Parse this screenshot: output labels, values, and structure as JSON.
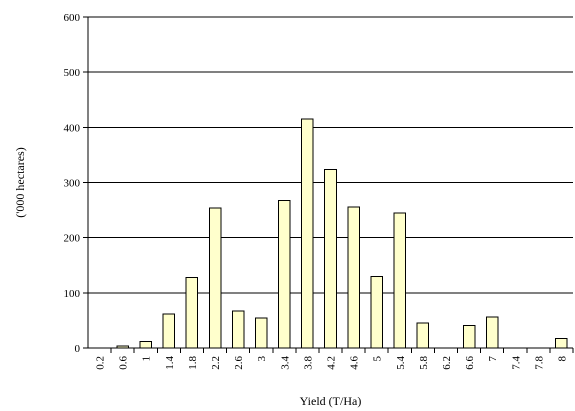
{
  "chart_data": {
    "type": "bar",
    "title": "",
    "xlabel": "Yield (T/Ha)",
    "ylabel": "('000 hectares)",
    "categories": [
      "0.2",
      "0.6",
      "1",
      "1.4",
      "1.8",
      "2.2",
      "2.6",
      "3",
      "3.4",
      "3.8",
      "4.2",
      "4.6",
      "5",
      "5.4",
      "5.8",
      "6.2",
      "6.6",
      "7",
      "7.4",
      "7.8",
      "8"
    ],
    "values": [
      0,
      4,
      12,
      62,
      128,
      254,
      67,
      54,
      267,
      415,
      324,
      256,
      130,
      245,
      45,
      0,
      41,
      56,
      0,
      0,
      17
    ],
    "ylim": [
      0,
      600
    ],
    "yticks": [
      0,
      100,
      200,
      300,
      400,
      500,
      600
    ],
    "grid": true,
    "legend": "none",
    "colors": {
      "bar_fill": "#ffffcc",
      "bar_stroke": "#000000",
      "grid": "#000000",
      "axis": "#000000"
    }
  }
}
